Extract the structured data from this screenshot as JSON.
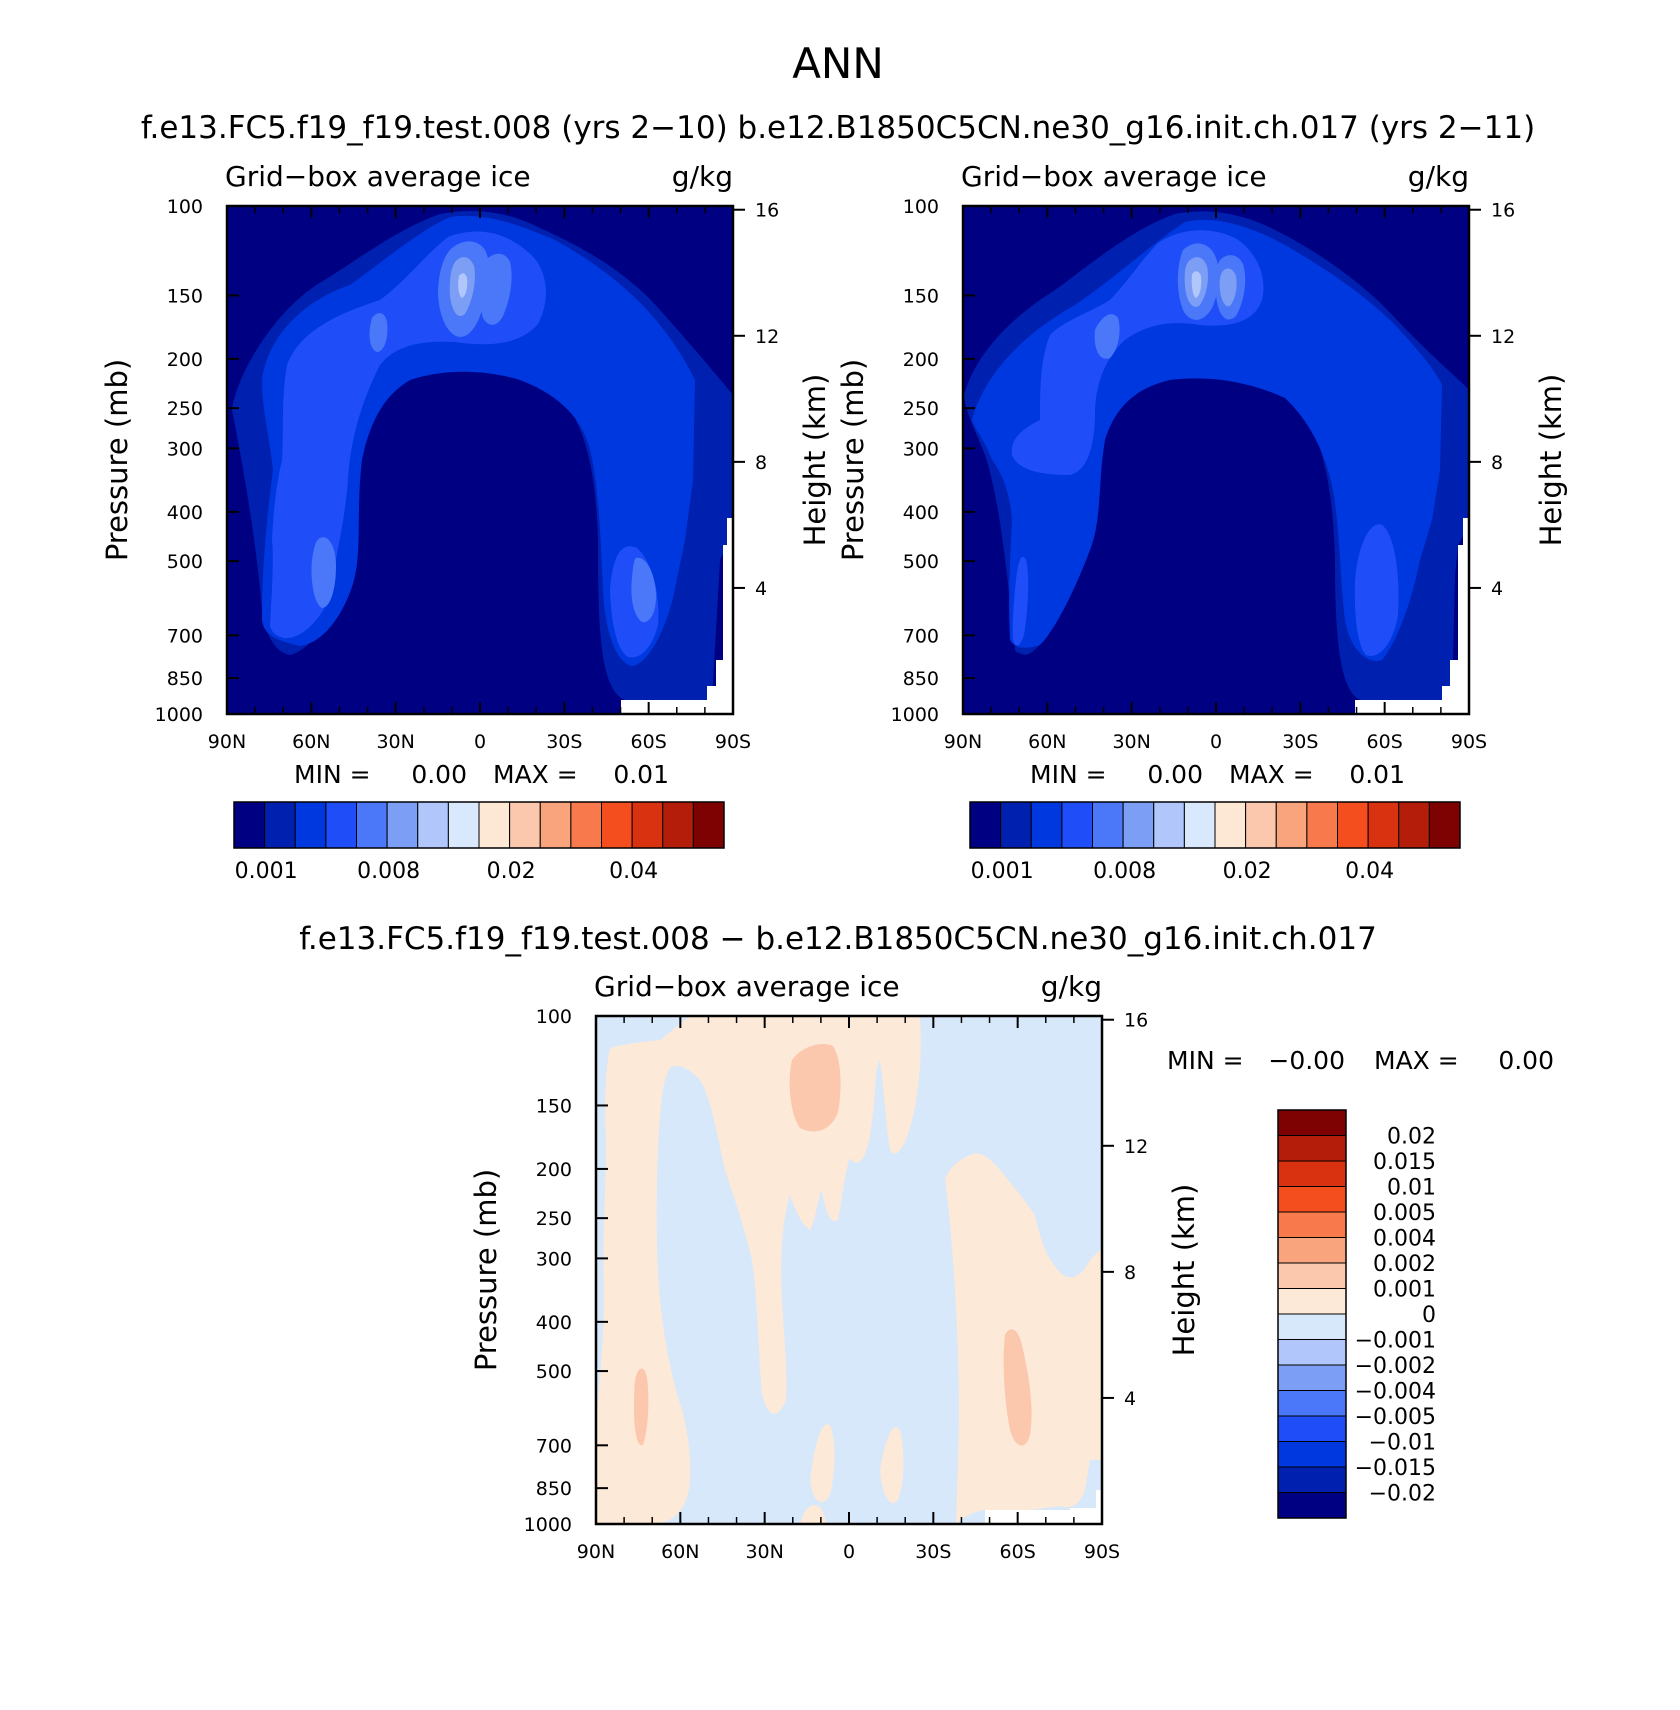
{
  "page": {
    "title": "ANN",
    "cases_line": "f.e13.FC5.f19_f19.test.008 (yrs 2−10) b.e12.B1850C5CN.ne30_g16.init.ch.017 (yrs 2−11)",
    "diff_line": "f.e13.FC5.f19_f19.test.008 − b.e12.B1850C5CN.ne30_g16.init.ch.017"
  },
  "colors": {
    "sequential": [
      "#000082",
      "#0021b0",
      "#0038e0",
      "#1f4ef8",
      "#4a78f8",
      "#7d9ef5",
      "#b1c6fb",
      "#d9e8fc",
      "#fde8d6",
      "#fbc8ae",
      "#f9a47d",
      "#f7794c",
      "#f44e1e",
      "#d93210",
      "#b31d09",
      "#7f0202"
    ],
    "diff": [
      "#000082",
      "#0021b0",
      "#0038e0",
      "#1f4ef8",
      "#4a78f8",
      "#7d9ef5",
      "#b1c6fb",
      "#d7e8fb",
      "#fde9d8",
      "#fbc8ae",
      "#f9a47d",
      "#f7794c",
      "#f44e1e",
      "#d93210",
      "#b31d09",
      "#7f0202"
    ]
  },
  "chart_data": [
    {
      "type": "contour",
      "id": "model",
      "title": "Grid−box average ice",
      "units": "g/kg",
      "ylabel": "Pressure (mb)",
      "ylabel_right": "Height (km)",
      "xticks": [
        "90N",
        "60N",
        "30N",
        "0",
        "30S",
        "60S",
        "90S"
      ],
      "x_values": [
        90,
        60,
        30,
        0,
        -30,
        -60,
        -90
      ],
      "yticks": [
        "100",
        "150",
        "200",
        "250",
        "300",
        "400",
        "500",
        "700",
        "850",
        "1000"
      ],
      "y_values": [
        100,
        150,
        200,
        250,
        300,
        400,
        500,
        700,
        850,
        1000
      ],
      "yscale": "log",
      "ylim": [
        1000,
        100
      ],
      "height_ticks": [
        "16",
        "12",
        "8",
        "4"
      ],
      "height_values": [
        16,
        12,
        8,
        4
      ],
      "min_label": "MIN =",
      "min_value": "0.00",
      "max_label": "MAX =",
      "max_value": "0.01",
      "colorbar_labels": [
        "0.001",
        "0.008",
        "0.02",
        "0.04"
      ],
      "colorbar_orientation": "horizontal"
    },
    {
      "type": "contour",
      "id": "control",
      "title": "Grid−box average ice",
      "units": "g/kg",
      "ylabel": "Pressure (mb)",
      "ylabel_right": "Height (km)",
      "xticks": [
        "90N",
        "60N",
        "30N",
        "0",
        "30S",
        "60S",
        "90S"
      ],
      "x_values": [
        90,
        60,
        30,
        0,
        -30,
        -60,
        -90
      ],
      "yticks": [
        "100",
        "150",
        "200",
        "250",
        "300",
        "400",
        "500",
        "700",
        "850",
        "1000"
      ],
      "y_values": [
        100,
        150,
        200,
        250,
        300,
        400,
        500,
        700,
        850,
        1000
      ],
      "yscale": "log",
      "ylim": [
        1000,
        100
      ],
      "height_ticks": [
        "16",
        "12",
        "8",
        "4"
      ],
      "height_values": [
        16,
        12,
        8,
        4
      ],
      "min_label": "MIN =",
      "min_value": "0.00",
      "max_label": "MAX =",
      "max_value": "0.01",
      "colorbar_labels": [
        "0.001",
        "0.008",
        "0.02",
        "0.04"
      ],
      "colorbar_orientation": "horizontal"
    },
    {
      "type": "contour",
      "id": "difference",
      "title": "Grid−box average ice",
      "units": "g/kg",
      "ylabel": "Pressure (mb)",
      "ylabel_right": "Height (km)",
      "xticks": [
        "90N",
        "60N",
        "30N",
        "0",
        "30S",
        "60S",
        "90S"
      ],
      "x_values": [
        90,
        60,
        30,
        0,
        -30,
        -60,
        -90
      ],
      "yticks": [
        "100",
        "150",
        "200",
        "250",
        "300",
        "400",
        "500",
        "700",
        "850",
        "1000"
      ],
      "y_values": [
        100,
        150,
        200,
        250,
        300,
        400,
        500,
        700,
        850,
        1000
      ],
      "yscale": "log",
      "ylim": [
        1000,
        100
      ],
      "height_ticks": [
        "16",
        "12",
        "8",
        "4"
      ],
      "height_values": [
        16,
        12,
        8,
        4
      ],
      "min_label": "MIN =",
      "min_value": "−0.00",
      "max_label": "MAX =",
      "max_value": "0.00",
      "colorbar_labels": [
        "0.02",
        "0.015",
        "0.01",
        "0.005",
        "0.004",
        "0.002",
        "0.001",
        "0",
        "−0.001",
        "−0.002",
        "−0.004",
        "−0.005",
        "−0.01",
        "−0.015",
        "−0.02"
      ],
      "colorbar_orientation": "vertical"
    }
  ]
}
